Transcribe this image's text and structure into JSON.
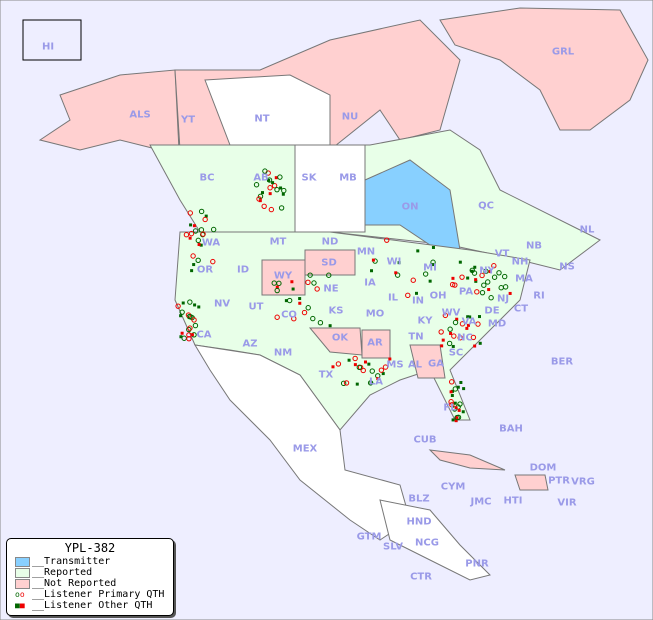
{
  "legend": {
    "title": "YPL-382",
    "items": [
      {
        "label": "__Transmitter",
        "color": "#88d0ff"
      },
      {
        "label": "__Reported",
        "color": "#e8ffe8"
      },
      {
        "label": "__Not Reported",
        "color": "#ffd0d0"
      },
      {
        "label": "__Listener Primary QTH",
        "marker": "ring",
        "colors": [
          "#006600",
          "#ee0000"
        ]
      },
      {
        "label": "__Listener Other QTH",
        "marker": "square",
        "colors": [
          "#006600",
          "#ee0000"
        ]
      }
    ]
  },
  "colors": {
    "background": "#eeeeff",
    "reported": "#e8ffe8",
    "not_reported": "#ffd0d0",
    "transmitter": "#88d0ff",
    "label": "#9a9ae8"
  },
  "labels": [
    "HI",
    "ALS",
    "YT",
    "NT",
    "NU",
    "GRL",
    "BC",
    "AB",
    "SK",
    "MB",
    "ON",
    "QC",
    "NL",
    "NB",
    "NS",
    "WA",
    "OR",
    "ID",
    "MT",
    "WY",
    "ND",
    "SD",
    "MN",
    "WI",
    "MI",
    "NE",
    "IA",
    "IL",
    "IN",
    "OH",
    "PA",
    "NY",
    "VT",
    "NH",
    "MA",
    "CT",
    "RI",
    "NJ",
    "DE",
    "MD",
    "WV",
    "VA",
    "KY",
    "TN",
    "NC",
    "SC",
    "GA",
    "AL",
    "MS",
    "AR",
    "LA",
    "TX",
    "OK",
    "KS",
    "MO",
    "CO",
    "UT",
    "NV",
    "CA",
    "AZ",
    "NM",
    "FL",
    "BER",
    "BAH",
    "CUB",
    "MEX",
    "DOM",
    "PTR",
    "VRG",
    "VIR",
    "CYM",
    "JMC",
    "HTI",
    "BLZ",
    "HND",
    "GTM",
    "SLV",
    "NCG",
    "CTR",
    "PNR"
  ]
}
